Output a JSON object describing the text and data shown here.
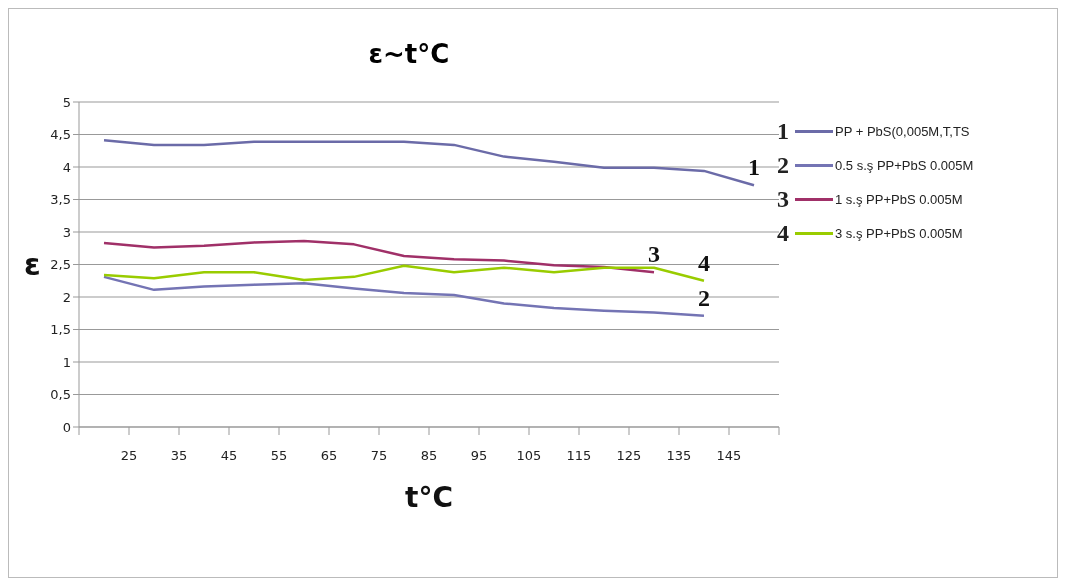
{
  "chart_data": {
    "type": "line",
    "title": "ε~t°C",
    "xlabel": "t°C",
    "ylabel": "ε",
    "x": [
      20,
      30,
      40,
      50,
      60,
      70,
      80,
      90,
      100,
      110,
      120,
      130,
      140,
      150
    ],
    "xlim": [
      15,
      155
    ],
    "xticks": [
      {
        "value": 15,
        "label": null
      },
      25,
      35,
      45,
      55,
      65,
      75,
      85,
      95,
      105,
      115,
      125,
      135,
      145,
      {
        "value": 155,
        "label": null
      }
    ],
    "ylim": [
      0,
      5
    ],
    "yticks": [
      0,
      {
        "value": 0.5,
        "label": "0,5"
      },
      1,
      {
        "value": 1.5,
        "label": "1,5"
      },
      2,
      {
        "value": 2.5,
        "label": "2,5"
      },
      3,
      {
        "value": 3.5,
        "label": "3,5"
      },
      4,
      {
        "value": 4.5,
        "label": "4,5"
      },
      5
    ],
    "grid": "y",
    "legend": "right",
    "marker": "none",
    "line_style": "solid",
    "series": [
      {
        "name": "PP + PbS(0,005M,T,TS",
        "color": "#6b6ba8",
        "values": [
          4.41,
          4.34,
          4.34,
          4.39,
          4.39,
          4.39,
          4.39,
          4.34,
          4.16,
          4.08,
          3.99,
          3.99,
          3.94,
          3.72
        ]
      },
      {
        "name": "0.5 s.ş PP+PbS 0.005M",
        "color": "#7474b4",
        "values": [
          2.31,
          2.11,
          2.16,
          2.19,
          2.21,
          2.13,
          2.06,
          2.03,
          1.9,
          1.83,
          1.79,
          1.76,
          1.71,
          null
        ]
      },
      {
        "name": "1 s.ş PP+PbS 0.005M",
        "color": "#a03068",
        "values": [
          2.83,
          2.76,
          2.79,
          2.84,
          2.86,
          2.81,
          2.63,
          2.58,
          2.56,
          2.49,
          2.46,
          2.38,
          null,
          null
        ]
      },
      {
        "name": "3 s.ş PP+PbS 0.005M",
        "color": "#99cc00",
        "values": [
          2.34,
          2.29,
          2.38,
          2.38,
          2.26,
          2.31,
          2.48,
          2.38,
          2.45,
          2.38,
          2.45,
          2.45,
          2.25,
          null
        ]
      }
    ],
    "annotations": [
      "1",
      "2",
      "3",
      "4"
    ]
  }
}
